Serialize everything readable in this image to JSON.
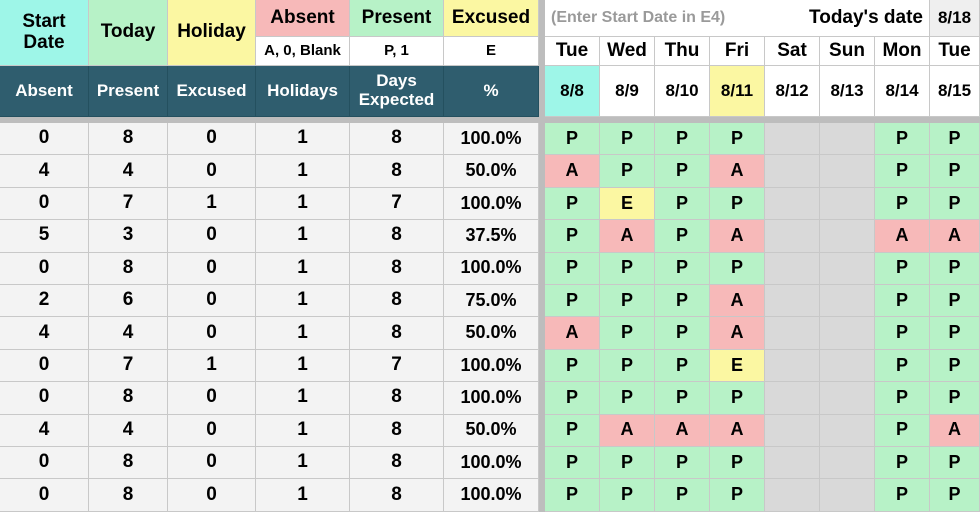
{
  "header": {
    "start_date": "Start Date",
    "today": "Today",
    "holiday": "Holiday",
    "absent": "Absent",
    "absent_codes": "A, 0, Blank",
    "present": "Present",
    "present_codes": "P, 1",
    "excused": "Excused",
    "excused_codes": "E",
    "hint": "(Enter Start Date in E4)",
    "todays_date": "Today's date",
    "todays_date_value": "8/18"
  },
  "summary_columns": [
    "Absent",
    "Present",
    "Excused",
    "Holidays",
    "Days Expected",
    "%"
  ],
  "calendar": {
    "weekdays": [
      "Tue",
      "Wed",
      "Thu",
      "Fri",
      "Sat",
      "Sun",
      "Mon",
      "Tue"
    ],
    "dates": [
      "8/8",
      "8/9",
      "8/10",
      "8/11",
      "8/12",
      "8/13",
      "8/14",
      "8/15"
    ]
  },
  "rows": [
    {
      "absent": "0",
      "present": "8",
      "excused": "0",
      "holidays": "1",
      "expected": "8",
      "pct": "100.0%",
      "att": [
        "P",
        "P",
        "P",
        "P",
        "",
        "",
        "P",
        "P"
      ]
    },
    {
      "absent": "4",
      "present": "4",
      "excused": "0",
      "holidays": "1",
      "expected": "8",
      "pct": "50.0%",
      "att": [
        "A",
        "P",
        "P",
        "A",
        "",
        "",
        "P",
        "P"
      ]
    },
    {
      "absent": "0",
      "present": "7",
      "excused": "1",
      "holidays": "1",
      "expected": "7",
      "pct": "100.0%",
      "att": [
        "P",
        "E",
        "P",
        "P",
        "",
        "",
        "P",
        "P"
      ]
    },
    {
      "absent": "5",
      "present": "3",
      "excused": "0",
      "holidays": "1",
      "expected": "8",
      "pct": "37.5%",
      "att": [
        "P",
        "A",
        "P",
        "A",
        "",
        "",
        "A",
        "A"
      ]
    },
    {
      "absent": "0",
      "present": "8",
      "excused": "0",
      "holidays": "1",
      "expected": "8",
      "pct": "100.0%",
      "att": [
        "P",
        "P",
        "P",
        "P",
        "",
        "",
        "P",
        "P"
      ]
    },
    {
      "absent": "2",
      "present": "6",
      "excused": "0",
      "holidays": "1",
      "expected": "8",
      "pct": "75.0%",
      "att": [
        "P",
        "P",
        "P",
        "A",
        "",
        "",
        "P",
        "P"
      ]
    },
    {
      "absent": "4",
      "present": "4",
      "excused": "0",
      "holidays": "1",
      "expected": "8",
      "pct": "50.0%",
      "att": [
        "A",
        "P",
        "P",
        "A",
        "",
        "",
        "P",
        "P"
      ]
    },
    {
      "absent": "0",
      "present": "7",
      "excused": "1",
      "holidays": "1",
      "expected": "7",
      "pct": "100.0%",
      "att": [
        "P",
        "P",
        "P",
        "E",
        "",
        "",
        "P",
        "P"
      ]
    },
    {
      "absent": "0",
      "present": "8",
      "excused": "0",
      "holidays": "1",
      "expected": "8",
      "pct": "100.0%",
      "att": [
        "P",
        "P",
        "P",
        "P",
        "",
        "",
        "P",
        "P"
      ]
    },
    {
      "absent": "4",
      "present": "4",
      "excused": "0",
      "holidays": "1",
      "expected": "8",
      "pct": "50.0%",
      "att": [
        "P",
        "A",
        "A",
        "A",
        "",
        "",
        "P",
        "A"
      ]
    },
    {
      "absent": "0",
      "present": "8",
      "excused": "0",
      "holidays": "1",
      "expected": "8",
      "pct": "100.0%",
      "att": [
        "P",
        "P",
        "P",
        "P",
        "",
        "",
        "P",
        "P"
      ]
    },
    {
      "absent": "0",
      "present": "8",
      "excused": "0",
      "holidays": "1",
      "expected": "8",
      "pct": "100.0%",
      "att": [
        "P",
        "P",
        "P",
        "P",
        "",
        "",
        "P",
        "P"
      ]
    }
  ],
  "colors": {
    "present": "#b7f2c7",
    "absent": "#f7b9b9",
    "excused": "#fbf7a2",
    "start_date": "#9ef6e8",
    "weekend": "#d9d9d9",
    "header_dark": "#2f5d6e"
  }
}
